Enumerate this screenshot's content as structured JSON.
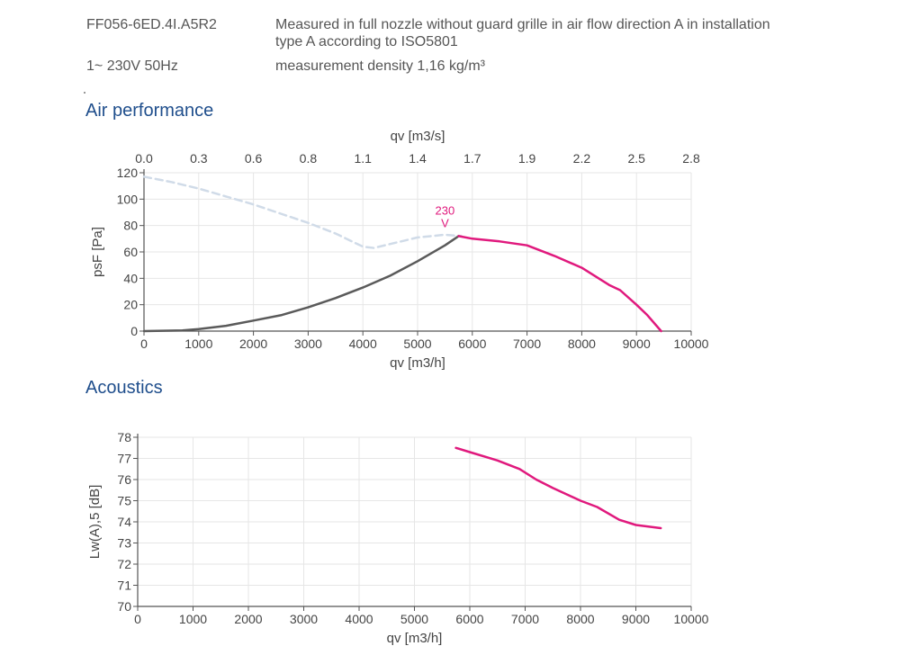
{
  "header": {
    "model": "FF056-6ED.4I.A5R2",
    "supply": "1~ 230V 50Hz",
    "measurement_line1": "Measured in full nozzle without guard grille in air flow direction A in installation",
    "measurement_line2": "type A according to ISO5801",
    "density": "measurement density 1,16 kg/m³"
  },
  "sections": {
    "air_performance": "Air performance",
    "acoustics": "Acoustics"
  },
  "colors": {
    "operating_curve": "#e0197d",
    "system_curve": "#5a5a5a",
    "free_curve": "#d0dbe8",
    "title": "#1f4e8c",
    "grid": "#e6e6e6"
  },
  "chart_data": [
    {
      "type": "line",
      "title": "Air performance",
      "xlabel": "qv [m3/h]",
      "ylabel": "psF [Pa]",
      "x2label": "qv [m3/s]",
      "xlim": [
        0,
        10000
      ],
      "ylim": [
        0,
        120
      ],
      "xticks": [
        "0",
        "1000",
        "2000",
        "3000",
        "4000",
        "5000",
        "6000",
        "7000",
        "8000",
        "9000",
        "10000"
      ],
      "yticks": [
        "0",
        "20",
        "40",
        "60",
        "80",
        "100",
        "120"
      ],
      "x2ticks": [
        "0.0",
        "0.3",
        "0.6",
        "0.8",
        "1.1",
        "1.4",
        "1.7",
        "1.9",
        "2.2",
        "2.5",
        "2.8"
      ],
      "grid": true,
      "annotation": {
        "line1": "230",
        "line2": "V",
        "x": 5500,
        "y": 72
      },
      "series": [
        {
          "key": "free",
          "style": "dashed",
          "points": [
            [
              0,
              117
            ],
            [
              500,
              113
            ],
            [
              1000,
              108
            ],
            [
              1500,
              102
            ],
            [
              2000,
              96
            ],
            [
              2500,
              89
            ],
            [
              3000,
              82
            ],
            [
              3500,
              74
            ],
            [
              3800,
              68
            ],
            [
              4000,
              64
            ],
            [
              4200,
              63
            ],
            [
              4500,
              66
            ],
            [
              5000,
              71
            ],
            [
              5500,
              73
            ],
            [
              5800,
              72
            ]
          ]
        },
        {
          "key": "system",
          "style": "solid",
          "points": [
            [
              0,
              0
            ],
            [
              700,
              0.5
            ],
            [
              1000,
              1.5
            ],
            [
              1500,
              4
            ],
            [
              2000,
              8
            ],
            [
              2500,
              12
            ],
            [
              3000,
              18
            ],
            [
              3500,
              25
            ],
            [
              4000,
              33
            ],
            [
              4500,
              42
            ],
            [
              5000,
              53
            ],
            [
              5500,
              65
            ],
            [
              5750,
              72
            ]
          ]
        },
        {
          "key": "operating",
          "style": "solid",
          "points": [
            [
              5750,
              72
            ],
            [
              6000,
              70
            ],
            [
              6500,
              68
            ],
            [
              7000,
              65
            ],
            [
              7500,
              57
            ],
            [
              8000,
              48
            ],
            [
              8500,
              35
            ],
            [
              8700,
              31
            ],
            [
              9000,
              20
            ],
            [
              9200,
              12
            ],
            [
              9450,
              0
            ]
          ]
        }
      ]
    },
    {
      "type": "line",
      "title": "Acoustics",
      "xlabel": "qv [m3/h]",
      "ylabel": "Lw(A),5 [dB]",
      "xlim": [
        0,
        10000
      ],
      "ylim": [
        70,
        78
      ],
      "xticks": [
        "0",
        "1000",
        "2000",
        "3000",
        "4000",
        "5000",
        "6000",
        "7000",
        "8000",
        "9000",
        "10000"
      ],
      "yticks": [
        "70",
        "71",
        "72",
        "73",
        "74",
        "75",
        "76",
        "77",
        "78"
      ],
      "grid": true,
      "series": [
        {
          "key": "operating",
          "style": "solid",
          "points": [
            [
              5750,
              77.5
            ],
            [
              6000,
              77.3
            ],
            [
              6500,
              76.9
            ],
            [
              6900,
              76.5
            ],
            [
              7200,
              76.0
            ],
            [
              7500,
              75.6
            ],
            [
              8000,
              75.0
            ],
            [
              8300,
              74.7
            ],
            [
              8700,
              74.1
            ],
            [
              9000,
              73.85
            ],
            [
              9450,
              73.7
            ]
          ]
        }
      ]
    }
  ]
}
